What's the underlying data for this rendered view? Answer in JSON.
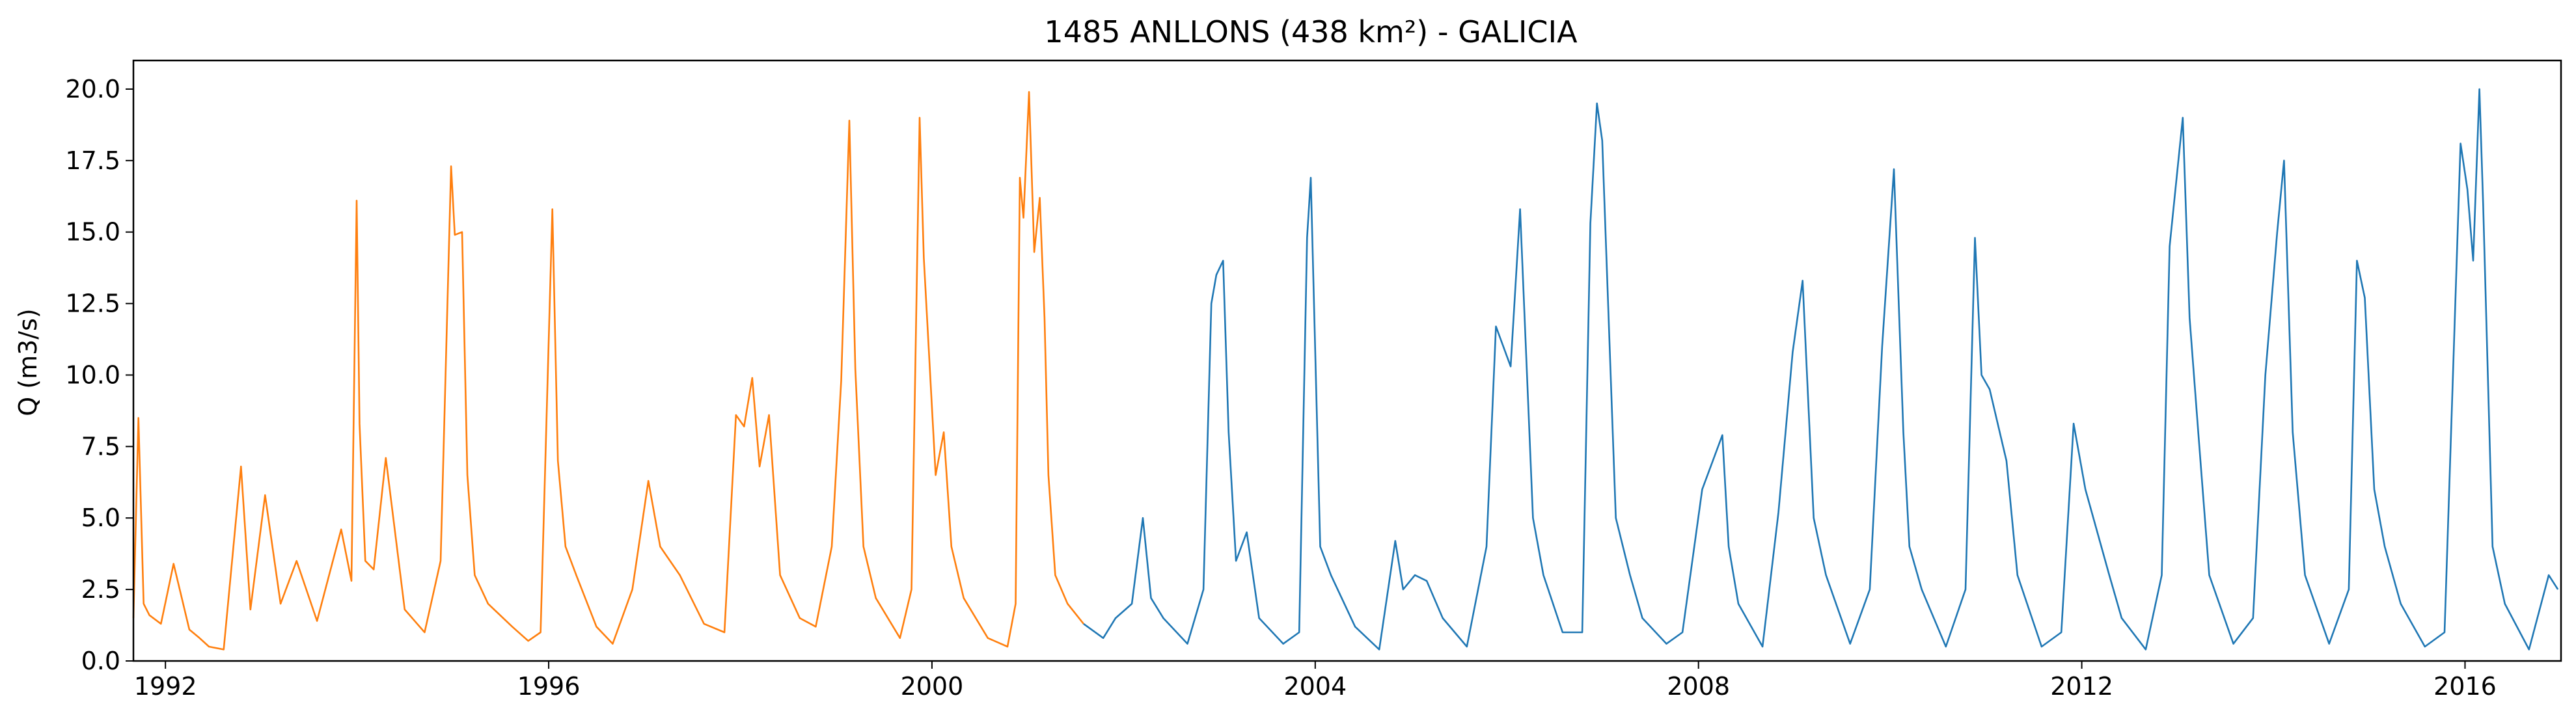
{
  "chart_data": {
    "type": "line",
    "title": "1485 ANLLONS (438 km²) - GALICIA",
    "xlabel": "",
    "ylabel": "Q (m3/s)",
    "xlim": [
      "1991-09-01",
      "2017-01-01"
    ],
    "ylim": [
      0,
      21
    ],
    "x_ticks": [
      "1992",
      "1996",
      "2000",
      "2004",
      "2008",
      "2012",
      "2016"
    ],
    "y_ticks": [
      "0.0",
      "2.5",
      "5.0",
      "7.5",
      "10.0",
      "12.5",
      "15.0",
      "17.5",
      "20.0"
    ],
    "grid": false,
    "legend": "none",
    "series": [
      {
        "color": "#ff7f0e",
        "x": [
          "1991-09-01",
          "1991-09-20",
          "1991-10-10",
          "1991-11-01",
          "1991-12-15",
          "1992-02-01",
          "1992-04-01",
          "1992-05-10",
          "1992-06-15",
          "1992-08-10",
          "1992-10-15",
          "1992-11-20",
          "1993-01-15",
          "1993-03-15",
          "1993-05-15",
          "1993-08-01",
          "1993-11-01",
          "1993-12-10",
          "1993-12-30",
          "1994-01-10",
          "1994-02-01",
          "1994-03-05",
          "1994-04-20",
          "1994-07-01",
          "1994-09-15",
          "1994-11-15",
          "1994-12-25",
          "1995-01-08",
          "1995-02-05",
          "1995-02-25",
          "1995-03-25",
          "1995-05-15",
          "1995-08-15",
          "1995-10-15",
          "1995-12-01",
          "1996-01-15",
          "1996-02-05",
          "1996-03-05",
          "1996-04-15",
          "1996-07-01",
          "1996-09-01",
          "1996-11-15",
          "1997-01-15",
          "1997-03-01",
          "1997-05-15",
          "1997-08-15",
          "1997-11-01",
          "1997-12-15",
          "1998-01-15",
          "1998-02-15",
          "1998-03-15",
          "1998-04-20",
          "1998-06-01",
          "1998-08-15",
          "1998-10-15",
          "1998-12-15",
          "1999-01-20",
          "1999-02-20",
          "1999-03-15",
          "1999-04-15",
          "1999-06-01",
          "1999-09-01",
          "1999-10-15",
          "1999-11-15",
          "1999-12-01",
          "2000-01-15",
          "2000-02-15",
          "2000-03-15",
          "2000-05-01",
          "2000-08-01",
          "2000-10-15",
          "2000-11-15",
          "2000-12-01",
          "2000-12-15",
          "2001-01-05",
          "2001-01-25",
          "2001-02-15",
          "2001-03-05",
          "2001-03-20",
          "2001-04-15",
          "2001-06-01",
          "2001-08-01"
        ],
        "y": [
          1.5,
          8.5,
          2.0,
          1.6,
          1.3,
          3.4,
          1.1,
          0.8,
          0.5,
          0.4,
          6.8,
          1.8,
          5.8,
          2.0,
          3.5,
          1.4,
          4.6,
          2.8,
          16.1,
          8.3,
          3.5,
          3.2,
          7.1,
          1.8,
          1.0,
          3.5,
          17.3,
          14.9,
          15.0,
          6.5,
          3.0,
          2.0,
          1.2,
          0.7,
          1.0,
          15.8,
          7.0,
          4.0,
          3.0,
          1.2,
          0.6,
          2.5,
          6.3,
          4.0,
          3.0,
          1.3,
          1.0,
          8.6,
          8.2,
          9.9,
          6.8,
          8.6,
          3.0,
          1.5,
          1.2,
          4.0,
          9.8,
          18.9,
          10.2,
          4.0,
          2.2,
          0.8,
          2.5,
          19.0,
          14.1,
          6.5,
          8.0,
          4.0,
          2.2,
          0.8,
          0.5,
          2.0,
          16.9,
          15.5,
          19.9,
          14.3,
          16.2,
          12.0,
          6.5,
          3.0,
          2.0,
          1.3
        ]
      },
      {
        "color": "#1f77b4",
        "x": [
          "2001-08-01",
          "2001-10-15",
          "2001-12-01",
          "2002-02-01",
          "2002-03-15",
          "2002-04-15",
          "2002-06-01",
          "2002-09-01",
          "2002-11-01",
          "2002-12-01",
          "2002-12-20",
          "2003-01-15",
          "2003-02-05",
          "2003-03-05",
          "2003-04-15",
          "2003-06-01",
          "2003-09-01",
          "2003-11-01",
          "2003-12-01",
          "2003-12-15",
          "2004-01-20",
          "2004-03-01",
          "2004-06-01",
          "2004-09-01",
          "2004-11-01",
          "2004-12-01",
          "2005-01-15",
          "2005-03-01",
          "2005-05-01",
          "2005-08-01",
          "2005-10-15",
          "2005-11-20",
          "2006-01-15",
          "2006-02-20",
          "2006-04-10",
          "2006-05-20",
          "2006-08-01",
          "2006-10-15",
          "2006-11-15",
          "2006-12-10",
          "2006-12-30",
          "2007-02-20",
          "2007-04-15",
          "2007-06-01",
          "2007-09-01",
          "2007-11-01",
          "2008-01-15",
          "2008-04-01",
          "2008-04-25",
          "2008-06-01",
          "2008-09-01",
          "2008-11-01",
          "2008-12-25",
          "2009-02-01",
          "2009-03-15",
          "2009-05-01",
          "2009-08-01",
          "2009-10-15",
          "2009-12-01",
          "2010-01-15",
          "2010-02-20",
          "2010-03-15",
          "2010-05-01",
          "2010-08-01",
          "2010-10-15",
          "2010-11-20",
          "2010-12-15",
          "2011-01-15",
          "2011-03-20",
          "2011-05-01",
          "2011-08-01",
          "2011-10-15",
          "2011-12-01",
          "2012-01-15",
          "2012-04-15",
          "2012-06-01",
          "2012-09-01",
          "2012-11-01",
          "2012-12-01",
          "2013-01-20",
          "2013-02-15",
          "2013-03-20",
          "2013-05-01",
          "2013-08-01",
          "2013-10-15",
          "2013-12-01",
          "2014-01-15",
          "2014-02-10",
          "2014-03-15",
          "2014-05-01",
          "2014-08-01",
          "2014-10-15",
          "2014-11-15",
          "2014-12-15",
          "2015-01-20",
          "2015-03-01",
          "2015-05-01",
          "2015-08-01",
          "2015-10-15",
          "2015-12-15",
          "2016-01-10",
          "2016-02-01",
          "2016-02-25",
          "2016-03-10",
          "2016-04-15",
          "2016-06-01",
          "2016-09-01",
          "2016-11-15",
          "2016-12-20"
        ],
        "y": [
          1.3,
          0.8,
          1.5,
          2.0,
          5.0,
          2.2,
          1.5,
          0.6,
          2.5,
          12.5,
          13.5,
          14.0,
          8.0,
          3.5,
          4.5,
          1.5,
          0.6,
          1.0,
          14.8,
          16.9,
          4.0,
          3.0,
          1.2,
          0.4,
          4.2,
          2.5,
          3.0,
          2.8,
          1.5,
          0.5,
          4.0,
          11.7,
          10.3,
          15.8,
          5.0,
          3.0,
          1.0,
          1.0,
          15.3,
          19.5,
          18.2,
          5.0,
          3.0,
          1.5,
          0.6,
          1.0,
          6.0,
          7.9,
          4.0,
          2.0,
          0.5,
          5.2,
          10.8,
          13.3,
          5.0,
          3.0,
          0.6,
          2.5,
          11.0,
          17.2,
          8.0,
          4.0,
          2.5,
          0.5,
          2.5,
          14.8,
          10.0,
          9.5,
          7.0,
          3.0,
          0.5,
          1.0,
          8.3,
          6.0,
          3.0,
          1.5,
          0.4,
          3.0,
          14.5,
          19.0,
          12.0,
          8.0,
          3.0,
          0.6,
          1.5,
          10.0,
          15.0,
          17.5,
          8.0,
          3.0,
          0.6,
          2.5,
          14.0,
          12.7,
          6.0,
          4.0,
          2.0,
          0.5,
          1.0,
          18.1,
          16.5,
          14.0,
          20.0,
          16.0,
          4.0,
          2.0,
          0.4,
          3.0,
          2.5
        ]
      }
    ]
  }
}
